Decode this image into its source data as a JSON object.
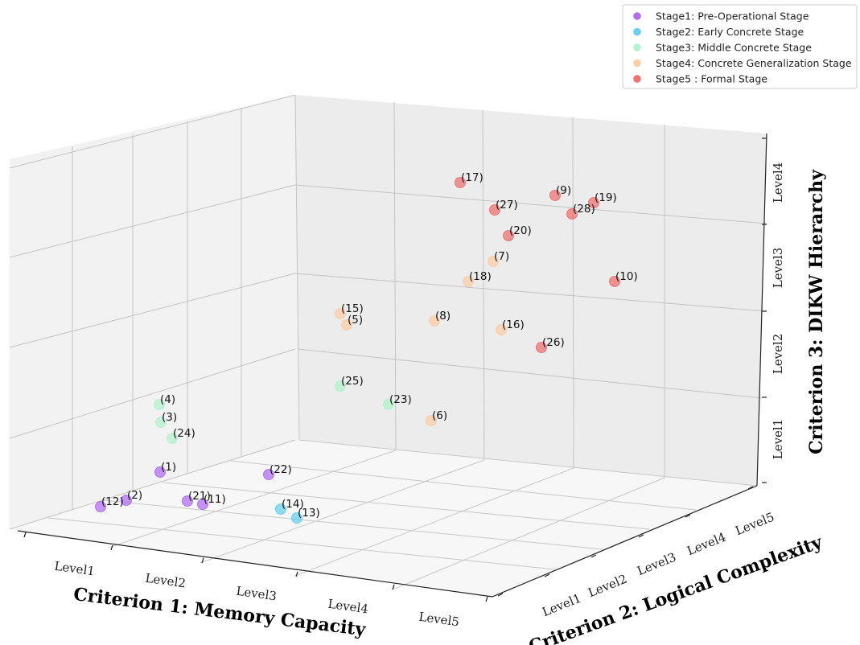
{
  "chart_data": {
    "type": "scatter3d",
    "xlabel": "Criterion 1: Memory Capacity",
    "ylabel": "Criterion 2: Logical Complexity",
    "zlabel": "Criterion 3: DIKW Hierarchy",
    "x_ticks": [
      "Level1",
      "Level2",
      "Level3",
      "Level4",
      "Level5"
    ],
    "y_ticks": [
      "Level1",
      "Level2",
      "Level3",
      "Level4",
      "Level5"
    ],
    "z_ticks": [
      "Level1",
      "Level2",
      "Level3",
      "Level4"
    ],
    "grid": true,
    "legend_position": "top-right",
    "series": [
      {
        "name": "Stage1: Pre-Operational Stage",
        "color": "#a354f0",
        "points": [
          "(1)",
          "(2)",
          "(11)",
          "(12)",
          "(21)",
          "(22)"
        ]
      },
      {
        "name": "Stage2: Early Concrete Stage",
        "color": "#4cc8ee",
        "points": [
          "(13)",
          "(14)"
        ]
      },
      {
        "name": "Stage3: Middle Concrete Stage",
        "color": "#a6f2c7",
        "points": [
          "(3)",
          "(4)",
          "(23)",
          "(24)",
          "(25)"
        ]
      },
      {
        "name": "Stage4: Concrete Generalization Stage",
        "color": "#fbc79a",
        "points": [
          "(5)",
          "(6)",
          "(7)",
          "(8)",
          "(15)",
          "(16)",
          "(18)"
        ]
      },
      {
        "name": "Stage5 : Formal Stage",
        "color": "#ee5959",
        "points": [
          "(9)",
          "(10)",
          "(17)",
          "(19)",
          "(20)",
          "(26)",
          "(27)",
          "(28)"
        ]
      }
    ]
  }
}
